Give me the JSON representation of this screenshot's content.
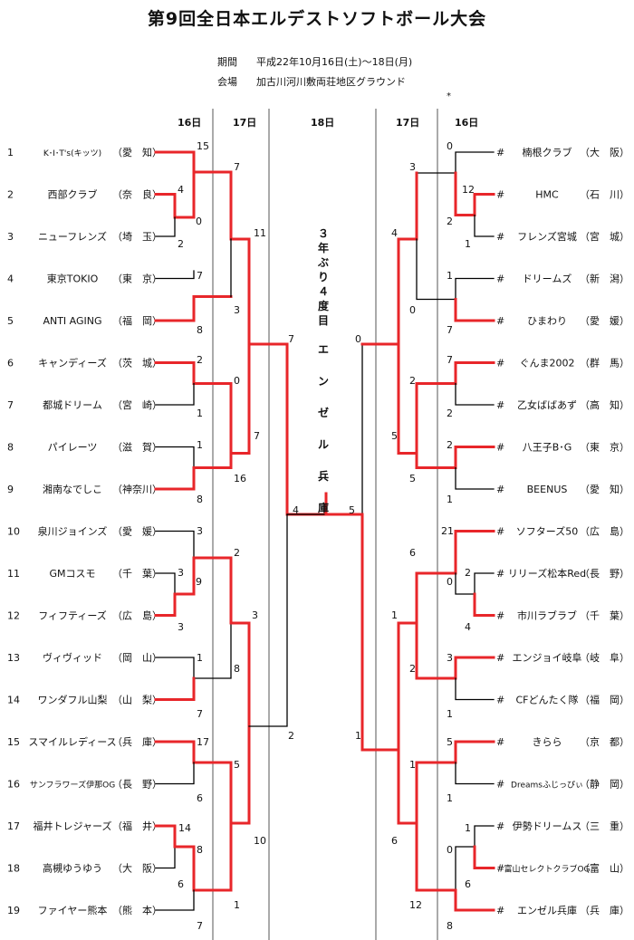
{
  "title": "第9回全日本エルデストソフトボール大会",
  "period_label": "期間",
  "period_value": "平成22年10月16日(土)～18日(月)",
  "venue_label": "会場",
  "venue_value": "加古川河川敷両荘地区グラウンド",
  "corner_mark": "*",
  "day_labels": {
    "left_16": "16日",
    "left_17": "17日",
    "final_18": "18日",
    "right_17": "17日",
    "right_16": "16日"
  },
  "left_teams": [
    {
      "no": "1",
      "name": "K･I･T's(キッツ)",
      "pref": "（愛　知）"
    },
    {
      "no": "2",
      "name": "西部クラブ",
      "pref": "（奈　良）"
    },
    {
      "no": "3",
      "name": "ニューフレンズ",
      "pref": "（埼　玉）"
    },
    {
      "no": "4",
      "name": "東京TOKIO",
      "pref": "（東　京）"
    },
    {
      "no": "5",
      "name": "ANTI AGING",
      "pref": "（福　岡）"
    },
    {
      "no": "6",
      "name": "キャンディーズ",
      "pref": "（茨　城）"
    },
    {
      "no": "7",
      "name": "都城ドリーム",
      "pref": "（宮　崎）"
    },
    {
      "no": "8",
      "name": "パイレーツ",
      "pref": "（滋　賀）"
    },
    {
      "no": "9",
      "name": "湘南なでしこ",
      "pref": "（神奈川）"
    },
    {
      "no": "10",
      "name": "泉川ジョインズ",
      "pref": "（愛　媛）"
    },
    {
      "no": "11",
      "name": "GMコスモ",
      "pref": "（千　葉）"
    },
    {
      "no": "12",
      "name": "フィフティーズ",
      "pref": "（広　島）"
    },
    {
      "no": "13",
      "name": "ヴィヴィッド",
      "pref": "（岡　山）"
    },
    {
      "no": "14",
      "name": "ワンダフル山梨",
      "pref": "（山　梨）"
    },
    {
      "no": "15",
      "name": "スマイルレディース",
      "pref": "（兵　庫）"
    },
    {
      "no": "16",
      "name": "サンフラワーズ伊那OG",
      "pref": "（長　野）"
    },
    {
      "no": "17",
      "name": "福井トレジャーズ",
      "pref": "（福　井）"
    },
    {
      "no": "18",
      "name": "高槻ゆうゆう",
      "pref": "（大　阪）"
    },
    {
      "no": "19",
      "name": "ファイヤー熊本",
      "pref": "（熊　本）"
    }
  ],
  "right_teams": [
    {
      "mark": "#",
      "name": "楠根クラブ",
      "pref": "（大　阪）"
    },
    {
      "mark": "#",
      "name": "HMC",
      "pref": "（石　川）"
    },
    {
      "mark": "#",
      "name": "フレンズ宮城",
      "pref": "（宮　城）"
    },
    {
      "mark": "#",
      "name": "ドリームズ",
      "pref": "（新　潟）"
    },
    {
      "mark": "#",
      "name": "ひまわり",
      "pref": "（愛　媛）"
    },
    {
      "mark": "#",
      "name": "ぐんま2002",
      "pref": "（群　馬）"
    },
    {
      "mark": "#",
      "name": "乙女ばばあず",
      "pref": "（高　知）"
    },
    {
      "mark": "#",
      "name": "八王子B･G",
      "pref": "（東　京）"
    },
    {
      "mark": "#",
      "name": "BEENUS",
      "pref": "（愛　知）"
    },
    {
      "mark": "#",
      "name": "ソフターズ50",
      "pref": "（広　島）"
    },
    {
      "mark": "#",
      "name": "リリーズ松本Red",
      "pref": "（長　野）"
    },
    {
      "mark": "#",
      "name": "市川ラブラブ",
      "pref": "（千　葉）"
    },
    {
      "mark": "#",
      "name": "エンジョイ岐阜",
      "pref": "（岐　阜）"
    },
    {
      "mark": "#",
      "name": "CFどんたく隊",
      "pref": "（福　岡）"
    },
    {
      "mark": "#",
      "name": "きらら",
      "pref": "（京　都）"
    },
    {
      "mark": "#",
      "name": "Dreamsふじっぴぃ",
      "pref": "（静　岡）"
    },
    {
      "mark": "#",
      "name": "伊勢ドリームス",
      "pref": "（三　重）"
    },
    {
      "mark": "#",
      "name": "富山セレクトクラブOG",
      "pref": "（富　山）"
    },
    {
      "mark": "#",
      "name": "エンゼル兵庫",
      "pref": "（兵　庫）"
    }
  ],
  "winner_note": "３年ぶり４度目",
  "winner_name": "エンゼル兵庫",
  "scores": {
    "l_r1a_top": "15",
    "l_r1a_inner_top": "4",
    "l_r1a_inner_bot": "0",
    "l_r1a_t3": "2",
    "l_q1_top": "7",
    "l_q1_bot": "11",
    "l_r1b_top": "7",
    "l_r1b_bot": "8",
    "l_q2_bot": "3",
    "l_r1c_top": "2",
    "l_r1c_bot": "1",
    "l_r1d_top": "1",
    "l_r1d_bot": "8",
    "l_q3_top": "0",
    "l_q3_bot": "7",
    "l_q4_bot": "16",
    "l_semi_top": "7",
    "l_r1e_top": "3",
    "l_r1e_inner_top": "3",
    "l_r1e_inner_bot": "9",
    "l_r1e_t12": "3",
    "l_q5_top": "2",
    "l_q5_bot": "3",
    "l_r1f_top": "1",
    "l_r1f_bot": "7",
    "l_q6_bot": "8",
    "l_r1g_top": "17",
    "l_r1g_bot": "6",
    "l_r1h_top": "14",
    "l_r1h_inner_top": "8",
    "l_r1h_inner_bot": "6",
    "l_r1h_t19": "7",
    "l_q7_top": "5",
    "l_q7_bot": "10",
    "l_q8_bot": "1",
    "l_semi_bot": "2",
    "final_left": "4",
    "final_right": "5",
    "r_r1a_top": "0",
    "r_r1a_inner_top": "12",
    "r_r1a_inner_bot": "2",
    "r_r1a_t3": "1",
    "r_q1_top": "3",
    "r_q1_bot": "4",
    "r_r1b_top": "1",
    "r_r1b_bot": "7",
    "r_q2_bot": "0",
    "r_semi_top": "0",
    "r_r1c_top": "7",
    "r_r1c_bot": "2",
    "r_r1d_top": "2",
    "r_r1d_bot": "1",
    "r_q3_top": "2",
    "r_q3_bot": "5",
    "r_q4_bot": "5",
    "r_r1e_top": "21",
    "r_r1e_inner_top": "2",
    "r_r1e_inner_bot": "0",
    "r_r1e_t12": "4",
    "r_q5_top": "6",
    "r_q5_bot": "1",
    "r_r1f_top": "3",
    "r_r1f_bot": "1",
    "r_q6_bot": "2",
    "r_semi_bot": "1",
    "r_r1g_top": "5",
    "r_r1g_bot": "1",
    "r_r1h_top": "1",
    "r_r1h_inner_top": "0",
    "r_r1h_inner_bot": "6",
    "r_r1h_t19": "8",
    "r_q7_top": "1",
    "r_q7_bot": "6",
    "r_q8_bot": "12"
  },
  "colors": {
    "win_line": "#e8262a",
    "line": "#000000",
    "paper": "#ffffff"
  }
}
